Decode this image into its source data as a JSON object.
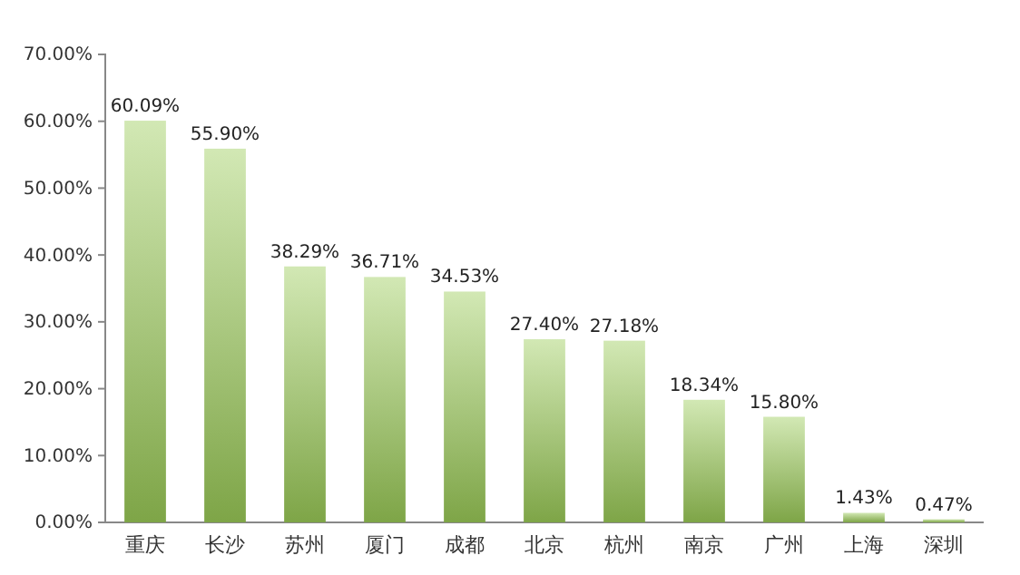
{
  "chart_data": {
    "type": "bar",
    "categories": [
      "重庆",
      "长沙",
      "苏州",
      "厦门",
      "成都",
      "北京",
      "杭州",
      "南京",
      "广州",
      "上海",
      "深圳"
    ],
    "values": [
      60.09,
      55.9,
      38.29,
      36.71,
      34.53,
      27.4,
      27.18,
      18.34,
      15.8,
      1.43,
      0.47
    ],
    "value_labels": [
      "60.09%",
      "55.90%",
      "38.29%",
      "36.71%",
      "34.53%",
      "27.40%",
      "27.18%",
      "18.34%",
      "15.80%",
      "1.43%",
      "0.47%"
    ],
    "color": "#9ccc58",
    "ylim": [
      0,
      70
    ],
    "yticks": [
      {
        "value": 0,
        "label": "0.00%"
      },
      {
        "value": 10,
        "label": "10.00%"
      },
      {
        "value": 20,
        "label": "20.00%"
      },
      {
        "value": 30,
        "label": "30.00%"
      },
      {
        "value": 40,
        "label": "40.00%"
      },
      {
        "value": 50,
        "label": "50.00%"
      },
      {
        "value": 60,
        "label": "60.00%"
      },
      {
        "value": 70,
        "label": "70.00%"
      }
    ],
    "grid": false
  }
}
